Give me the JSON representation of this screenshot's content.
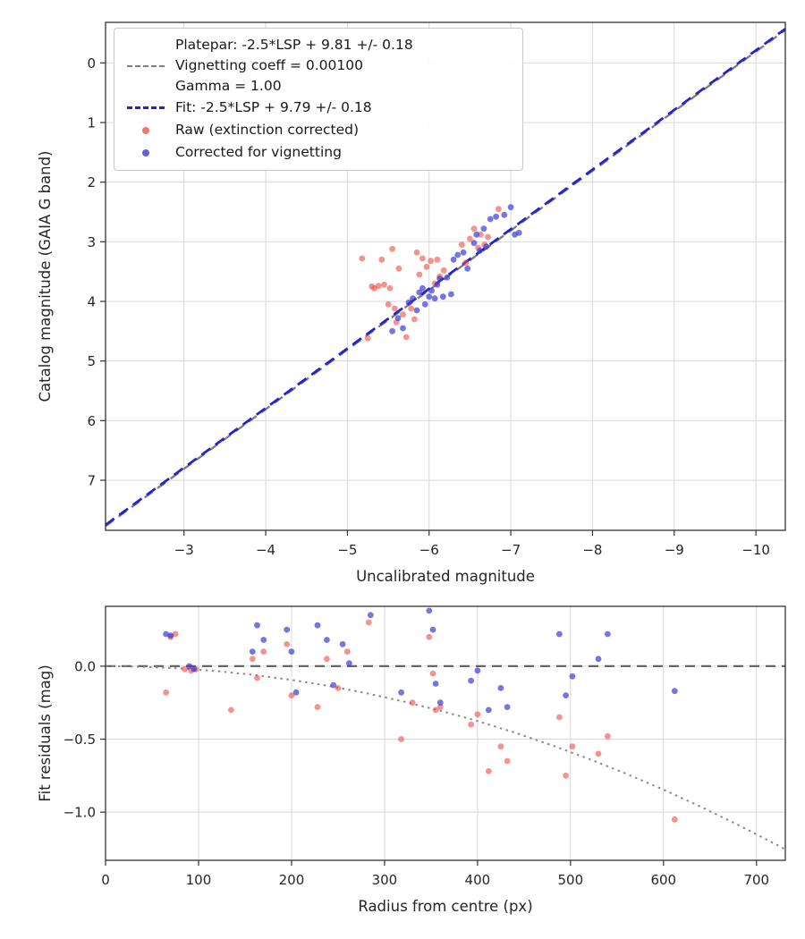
{
  "figure": {
    "background": "#ffffff"
  },
  "chart_data": [
    {
      "type": "scatter",
      "name": "photometric-calibration",
      "xlabel": "Uncalibrated magnitude",
      "ylabel": "Catalog magnitude (GAIA G band)",
      "xlim": [
        -2.04,
        -10.36
      ],
      "ylim": [
        -0.68,
        7.84
      ],
      "grid": {
        "show": true,
        "color": "#d9d9d9"
      },
      "xticks": [
        {
          "v": -3,
          "label": "−3"
        },
        {
          "v": -4,
          "label": "−4"
        },
        {
          "v": -5,
          "label": "−5"
        },
        {
          "v": -6,
          "label": "−6"
        },
        {
          "v": -7,
          "label": "−7"
        },
        {
          "v": -8,
          "label": "−8"
        },
        {
          "v": -9,
          "label": "−9"
        },
        {
          "v": -10,
          "label": "−10"
        }
      ],
      "yticks": [
        {
          "v": 0,
          "label": "0"
        },
        {
          "v": 1,
          "label": "1"
        },
        {
          "v": 2,
          "label": "2"
        },
        {
          "v": 3,
          "label": "3"
        },
        {
          "v": 4,
          "label": "4"
        },
        {
          "v": 5,
          "label": "5"
        },
        {
          "v": 6,
          "label": "6"
        },
        {
          "v": 7,
          "label": "7"
        }
      ],
      "lines": [
        {
          "name": "platepar-line",
          "color": "#7f7f7f",
          "dash": "11 7",
          "width": 2.4,
          "points": [
            [
              -2.04,
              7.77
            ],
            [
              -10.36,
              -0.55
            ]
          ]
        },
        {
          "name": "fit-line",
          "color": "#2424cc",
          "dash": "12 7",
          "width": 2.8,
          "points": [
            [
              -2.04,
              7.75
            ],
            [
              -10.36,
              -0.57
            ]
          ]
        }
      ],
      "series": [
        {
          "name": "raw",
          "label": "Raw (extinction corrected)",
          "color": "#ee4b40",
          "opacity": 0.6,
          "marker_radius": 3.4,
          "points": [
            [
              -5.18,
              3.28
            ],
            [
              -5.3,
              3.75
            ],
            [
              -5.33,
              3.78
            ],
            [
              -5.38,
              3.74
            ],
            [
              -5.42,
              3.3
            ],
            [
              -5.45,
              3.72
            ],
            [
              -5.5,
              4.05
            ],
            [
              -5.52,
              3.78
            ],
            [
              -5.55,
              3.12
            ],
            [
              -5.58,
              4.12
            ],
            [
              -5.6,
              4.35
            ],
            [
              -5.63,
              3.45
            ],
            [
              -5.68,
              4.22
            ],
            [
              -5.72,
              4.6
            ],
            [
              -5.78,
              4.12
            ],
            [
              -5.82,
              4.3
            ],
            [
              -5.85,
              3.18
            ],
            [
              -5.88,
              3.55
            ],
            [
              -5.92,
              3.28
            ],
            [
              -5.97,
              3.42
            ],
            [
              -6.02,
              3.32
            ],
            [
              -6.07,
              3.7
            ],
            [
              -6.1,
              3.3
            ],
            [
              -6.13,
              3.58
            ],
            [
              -6.18,
              3.48
            ],
            [
              -6.5,
              2.95
            ],
            [
              -6.55,
              2.78
            ],
            [
              -6.6,
              3.1
            ],
            [
              -6.63,
              2.88
            ],
            [
              -6.68,
              3.05
            ],
            [
              -6.72,
              2.92
            ],
            [
              -6.85,
              2.45
            ],
            [
              -5.25,
              4.62
            ],
            [
              -6.4,
              3.05
            ],
            [
              -6.45,
              3.35
            ]
          ]
        },
        {
          "name": "vignetting_corrected",
          "label": "Corrected for vignetting",
          "color": "#3a3ad8",
          "opacity": 0.7,
          "marker_radius": 3.4,
          "points": [
            [
              -5.55,
              4.5
            ],
            [
              -5.62,
              4.28
            ],
            [
              -5.68,
              4.45
            ],
            [
              -5.75,
              4.02
            ],
            [
              -5.8,
              3.95
            ],
            [
              -5.85,
              4.15
            ],
            [
              -5.88,
              3.85
            ],
            [
              -5.92,
              3.78
            ],
            [
              -5.95,
              4.05
            ],
            [
              -6.0,
              3.92
            ],
            [
              -6.03,
              3.82
            ],
            [
              -6.07,
              3.95
            ],
            [
              -6.1,
              3.72
            ],
            [
              -6.13,
              3.62
            ],
            [
              -6.17,
              3.92
            ],
            [
              -6.22,
              3.6
            ],
            [
              -6.27,
              3.88
            ],
            [
              -6.3,
              3.3
            ],
            [
              -6.35,
              3.22
            ],
            [
              -6.42,
              3.18
            ],
            [
              -6.55,
              3.02
            ],
            [
              -6.58,
              2.88
            ],
            [
              -6.62,
              3.15
            ],
            [
              -6.67,
              2.78
            ],
            [
              -6.7,
              3.08
            ],
            [
              -6.75,
              2.62
            ],
            [
              -6.82,
              2.58
            ],
            [
              -6.92,
              2.55
            ],
            [
              -7.0,
              2.42
            ],
            [
              -7.05,
              2.88
            ],
            [
              -7.1,
              2.85
            ],
            [
              -6.47,
              3.45
            ]
          ]
        }
      ],
      "legend": {
        "platepar_lines": [
          "Platepar: -2.5*LSP + 9.81 +/- 0.18",
          "Vignetting coeff = 0.00100",
          "Gamma = 1.00"
        ],
        "fit_label": "Fit: -2.5*LSP + 9.79 +/- 0.18",
        "raw_label": "Raw (extinction corrected)",
        "corrected_label": "Corrected for vignetting",
        "platepar_color": "#7f7f7f",
        "fit_color": "#2424cc"
      }
    },
    {
      "type": "scatter",
      "name": "fit-residuals",
      "xlabel": "Radius from centre (px)",
      "ylabel": "Fit residuals (mag)",
      "xlim": [
        0,
        731
      ],
      "ylim": [
        0.41,
        -1.33
      ],
      "grid": {
        "show": true,
        "color": "#d9d9d9"
      },
      "xticks": [
        {
          "v": 0,
          "label": "0"
        },
        {
          "v": 100,
          "label": "100"
        },
        {
          "v": 200,
          "label": "200"
        },
        {
          "v": 300,
          "label": "300"
        },
        {
          "v": 400,
          "label": "400"
        },
        {
          "v": 500,
          "label": "500"
        },
        {
          "v": 600,
          "label": "600"
        },
        {
          "v": 700,
          "label": "700"
        }
      ],
      "yticks": [
        {
          "v": 0,
          "label": "0.0"
        },
        {
          "v": -0.5,
          "label": "−0.5"
        },
        {
          "v": -1,
          "label": "−1.0"
        }
      ],
      "lines": [
        {
          "name": "zero-residual-line",
          "color": "#666666",
          "dash": "11 7",
          "width": 2.2,
          "points": [
            [
              0,
              0
            ],
            [
              731,
              0
            ]
          ]
        },
        {
          "name": "vignetting-model-curve",
          "color": "#8a8a8a",
          "dash": "2.5 4.5",
          "width": 2,
          "points": [
            [
              0,
              0
            ],
            [
              40,
              -0.004
            ],
            [
              80,
              -0.015
            ],
            [
              120,
              -0.034
            ],
            [
              160,
              -0.06
            ],
            [
              200,
              -0.094
            ],
            [
              240,
              -0.135
            ],
            [
              280,
              -0.184
            ],
            [
              320,
              -0.241
            ],
            [
              360,
              -0.305
            ],
            [
              400,
              -0.376
            ],
            [
              440,
              -0.455
            ],
            [
              480,
              -0.542
            ],
            [
              520,
              -0.636
            ],
            [
              560,
              -0.737
            ],
            [
              600,
              -0.846
            ],
            [
              640,
              -0.963
            ],
            [
              680,
              -1.087
            ],
            [
              720,
              -1.218
            ],
            [
              731,
              -1.255
            ]
          ]
        }
      ],
      "series": [
        {
          "name": "raw",
          "label": "Raw (extinction corrected)",
          "color": "#ee4b40",
          "opacity": 0.6,
          "marker_radius": 3.4,
          "points": [
            [
              65,
              -0.18
            ],
            [
              70,
              0.2
            ],
            [
              75,
              0.22
            ],
            [
              85,
              -0.02
            ],
            [
              92,
              -0.03
            ],
            [
              97,
              -0.02
            ],
            [
              135,
              -0.3
            ],
            [
              158,
              0.05
            ],
            [
              163,
              -0.08
            ],
            [
              170,
              0.1
            ],
            [
              195,
              0.15
            ],
            [
              200,
              -0.2
            ],
            [
              228,
              -0.28
            ],
            [
              238,
              0.05
            ],
            [
              250,
              -0.15
            ],
            [
              260,
              0.1
            ],
            [
              283,
              0.3
            ],
            [
              318,
              -0.5
            ],
            [
              330,
              -0.25
            ],
            [
              348,
              0.2
            ],
            [
              352,
              -0.05
            ],
            [
              355,
              -0.3
            ],
            [
              360,
              -0.28
            ],
            [
              393,
              -0.4
            ],
            [
              400,
              -0.33
            ],
            [
              412,
              -0.72
            ],
            [
              425,
              -0.55
            ],
            [
              432,
              -0.65
            ],
            [
              488,
              -0.35
            ],
            [
              495,
              -0.75
            ],
            [
              502,
              -0.55
            ],
            [
              530,
              -0.6
            ],
            [
              540,
              -0.48
            ],
            [
              612,
              -1.05
            ]
          ]
        },
        {
          "name": "vignetting_corrected",
          "label": "Corrected for vignetting",
          "color": "#3a3ad8",
          "opacity": 0.7,
          "marker_radius": 3.4,
          "points": [
            [
              65,
              0.22
            ],
            [
              70,
              0.21
            ],
            [
              90,
              0.0
            ],
            [
              95,
              -0.02
            ],
            [
              158,
              0.1
            ],
            [
              163,
              0.28
            ],
            [
              170,
              0.18
            ],
            [
              195,
              0.25
            ],
            [
              200,
              0.1
            ],
            [
              205,
              -0.18
            ],
            [
              228,
              0.28
            ],
            [
              238,
              0.18
            ],
            [
              245,
              -0.13
            ],
            [
              255,
              0.15
            ],
            [
              262,
              0.02
            ],
            [
              285,
              0.35
            ],
            [
              318,
              -0.18
            ],
            [
              348,
              0.38
            ],
            [
              352,
              0.25
            ],
            [
              355,
              -0.12
            ],
            [
              360,
              -0.25
            ],
            [
              393,
              -0.1
            ],
            [
              400,
              -0.03
            ],
            [
              412,
              -0.3
            ],
            [
              425,
              -0.15
            ],
            [
              432,
              -0.28
            ],
            [
              488,
              0.22
            ],
            [
              495,
              -0.2
            ],
            [
              502,
              -0.07
            ],
            [
              530,
              0.05
            ],
            [
              540,
              0.22
            ],
            [
              612,
              -0.17
            ]
          ]
        }
      ]
    }
  ]
}
